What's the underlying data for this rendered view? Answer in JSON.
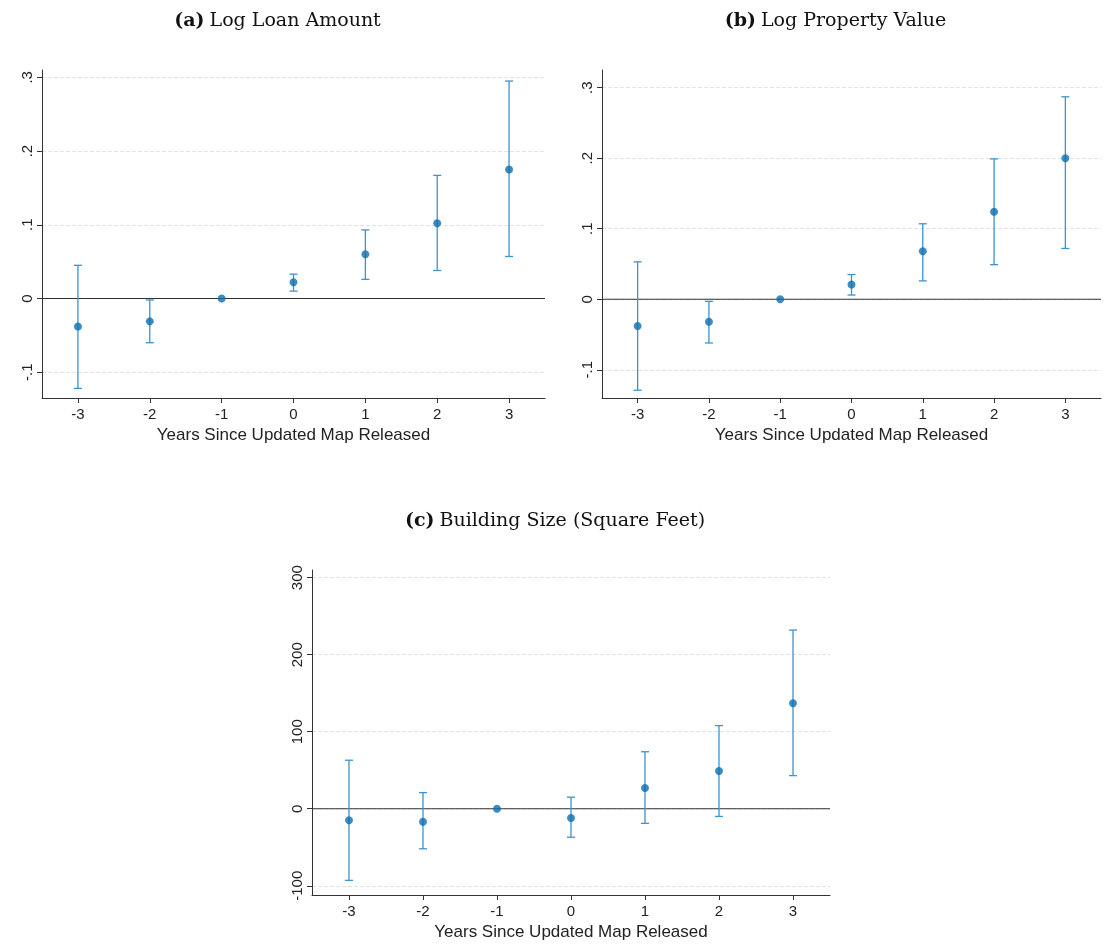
{
  "chart_data": [
    {
      "type": "scatter",
      "title": "(a) Log Loan Amount",
      "xlabel": "Years Since Updated Map Released",
      "x": [
        -3,
        -2,
        -1,
        0,
        1,
        2,
        3
      ],
      "series": [
        {
          "color": "#0e6eae",
          "values": [
            -0.038,
            -0.031,
            0,
            0.022,
            0.06,
            0.102,
            0.175
          ],
          "errors": [
            [
              -0.122,
              0.045
            ],
            [
              -0.06,
              -0.002
            ],
            null,
            [
              0.01,
              0.033
            ],
            [
              0.026,
              0.093
            ],
            [
              0.038,
              0.167
            ],
            [
              0.057,
              0.295
            ]
          ]
        }
      ],
      "xlim": [
        -3.5,
        3.5
      ],
      "xticks": [
        -3,
        -2,
        -1,
        0,
        1,
        2,
        3
      ],
      "ylim": [
        -0.135,
        0.31
      ],
      "yticks": [
        {
          "value": -0.1,
          "label": "-.1"
        },
        0,
        {
          "value": 0.1,
          "label": ".1"
        },
        {
          "value": 0.2,
          "label": ".2"
        },
        {
          "value": 0.3,
          "label": ".3"
        }
      ],
      "grid": "y",
      "marker": "circle",
      "ref_lines": [
        {
          "axis": "y",
          "value": 0,
          "color": "#333333"
        }
      ]
    },
    {
      "type": "scatter",
      "title": "(b) Log Property Value",
      "xlabel": "Years Since Updated Map Released",
      "x": [
        -3,
        -2,
        -1,
        0,
        1,
        2,
        3
      ],
      "series": [
        {
          "color": "#0e6eae",
          "values": [
            -0.038,
            -0.032,
            0,
            0.021,
            0.068,
            0.124,
            0.2
          ],
          "errors": [
            [
              -0.129,
              0.053
            ],
            [
              -0.062,
              -0.003
            ],
            null,
            [
              0.006,
              0.035
            ],
            [
              0.026,
              0.107
            ],
            [
              0.049,
              0.199
            ],
            [
              0.072,
              0.287
            ]
          ]
        }
      ],
      "xlim": [
        -3.5,
        3.5
      ],
      "xticks": [
        -3,
        -2,
        -1,
        0,
        1,
        2,
        3
      ],
      "ylim": [
        -0.14,
        0.325
      ],
      "yticks": [
        {
          "value": -0.1,
          "label": "-.1"
        },
        0,
        {
          "value": 0.1,
          "label": ".1"
        },
        {
          "value": 0.2,
          "label": ".2"
        },
        {
          "value": 0.3,
          "label": ".3"
        }
      ],
      "grid": "y",
      "marker": "circle",
      "ref_lines": [
        {
          "axis": "y",
          "value": 0,
          "color": "#333333"
        }
      ]
    },
    {
      "type": "scatter",
      "title": "(c) Building Size (Square Feet)",
      "xlabel": "Years Since Updated Map Released",
      "x": [
        -3,
        -2,
        -1,
        0,
        1,
        2,
        3
      ],
      "series": [
        {
          "color": "#0e6eae",
          "values": [
            -15,
            -17,
            0,
            -12,
            27,
            49,
            137
          ],
          "errors": [
            [
              -93,
              63
            ],
            [
              -52,
              21
            ],
            null,
            [
              -37,
              15
            ],
            [
              -19,
              74
            ],
            [
              -10,
              108
            ],
            [
              43,
              232
            ]
          ]
        }
      ],
      "xlim": [
        -3.5,
        3.5
      ],
      "xticks": [
        -3,
        -2,
        -1,
        0,
        1,
        2,
        3
      ],
      "ylim": [
        -112,
        310
      ],
      "yticks": [
        -100,
        0,
        100,
        200,
        300
      ],
      "grid": "y",
      "marker": "circle",
      "ref_lines": [
        {
          "axis": "y",
          "value": 0,
          "color": "#333333"
        }
      ]
    }
  ]
}
